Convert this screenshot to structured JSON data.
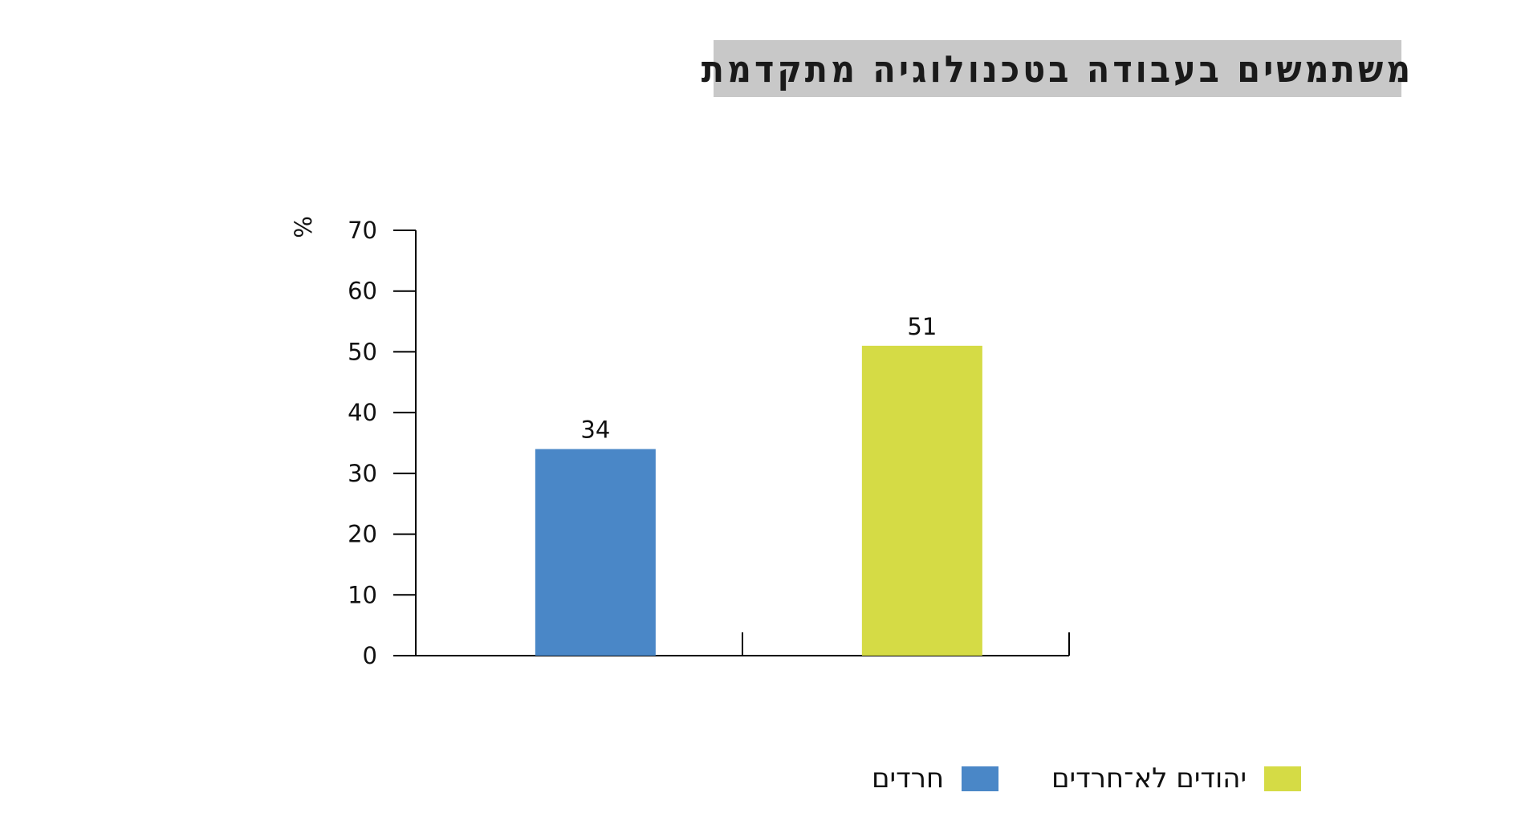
{
  "chart_data": {
    "type": "bar",
    "title": "משתמשים בעבודה בטכנולוגיה מתקדמת",
    "ylabel": "%",
    "ylim": [
      0,
      70
    ],
    "yticks": [
      0,
      10,
      20,
      30,
      40,
      50,
      60,
      70
    ],
    "grid": false,
    "legend_position": "bottom",
    "series": [
      {
        "name": "חרדים",
        "values": [
          34
        ],
        "color": "#4a87c7"
      },
      {
        "name": "יהודים לא־חרדים",
        "values": [
          51
        ],
        "color": "#d5db45"
      }
    ]
  }
}
